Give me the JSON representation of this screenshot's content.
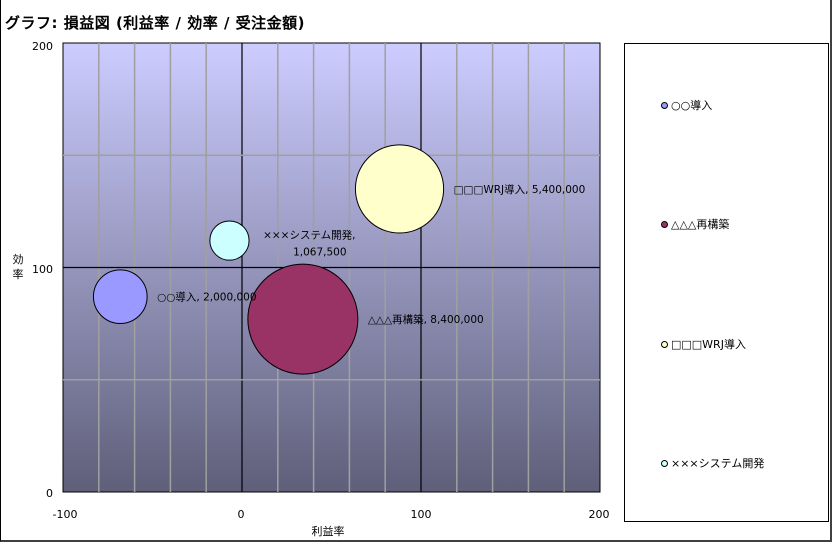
{
  "chart_data": {
    "type": "bubble",
    "title": "グラフ: 損益図 (利益率 / 効率 / 受注金額)",
    "xlabel": "利益率",
    "ylabel": "効率",
    "xlim": [
      -100,
      200
    ],
    "ylim": [
      0,
      200
    ],
    "x_ticks": [
      -100,
      0,
      100,
      200
    ],
    "y_ticks": [
      0,
      100,
      200
    ],
    "x_minor_grid_step": 20,
    "y_minor_grid_step": 50,
    "grid": true,
    "legend_position": "right",
    "series": [
      {
        "name": "○○導入",
        "x": -68,
        "y": 87,
        "size": 2000000,
        "size_label": "2,000,000",
        "color": "#9999ff"
      },
      {
        "name": "△△△再構築",
        "x": 34,
        "y": 77,
        "size": 8400000,
        "size_label": "8,400,000",
        "color": "#993366"
      },
      {
        "name": "□□□WRJ導入",
        "x": 88,
        "y": 135,
        "size": 5400000,
        "size_label": "5,400,000",
        "color": "#ffffcc"
      },
      {
        "name": "×××システム開発",
        "x": -7,
        "y": 112,
        "size": 1067500,
        "size_label": "1,067,500",
        "color": "#ccffff"
      }
    ]
  },
  "title": "グラフ: 損益図 (利益率 / 効率 / 受注金額)",
  "axes": {
    "x_title": "利益率",
    "y_title_line1": "効",
    "y_title_line2": "率",
    "x_tick_labels": [
      "-100",
      "0",
      "100",
      "200"
    ],
    "y_tick_labels": [
      "0",
      "100",
      "200"
    ]
  },
  "bubble_labels": [
    {
      "line1": "○○導入, 2,000,000",
      "line2": ""
    },
    {
      "line1": "△△△再構築, 8,400,000",
      "line2": ""
    },
    {
      "line1": "□□□WRJ導入, 5,400,000",
      "line2": ""
    },
    {
      "line1": "×××システム開発,",
      "line2": "1,067,500"
    }
  ],
  "legend": {
    "items": [
      {
        "label": "○○導入",
        "color": "#9999ff"
      },
      {
        "label": "△△△再構築",
        "color": "#993366"
      },
      {
        "label": "□□□WRJ導入",
        "color": "#ffffcc"
      },
      {
        "label": "×××システム開発",
        "color": "#ccffff"
      }
    ]
  },
  "colors": {
    "plot_gradient_top": "#ccccff",
    "plot_gradient_bottom": "#5f5f7a",
    "grid_minor": "#a0a0a0",
    "grid_major": "#000000"
  }
}
